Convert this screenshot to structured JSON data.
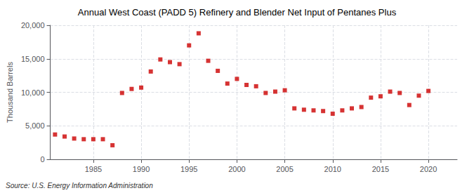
{
  "chart_data": {
    "type": "scatter",
    "title": "Annual West Coast (PADD 5) Refinery and Blender Net Input of Pentanes Plus",
    "ylabel": "Thousand Barrels",
    "source": "Source: U.S. Energy Information Administration",
    "x": [
      1981,
      1982,
      1983,
      1984,
      1985,
      1986,
      1987,
      1988,
      1989,
      1990,
      1991,
      1992,
      1993,
      1994,
      1995,
      1996,
      1997,
      1998,
      1999,
      2000,
      2001,
      2002,
      2003,
      2004,
      2005,
      2006,
      2007,
      2008,
      2009,
      2010,
      2011,
      2012,
      2013,
      2014,
      2015,
      2016,
      2017,
      2018,
      2019,
      2020
    ],
    "values": [
      3700,
      3400,
      3100,
      3000,
      3000,
      3000,
      2100,
      9900,
      10500,
      10700,
      13100,
      14900,
      14500,
      14200,
      17000,
      18800,
      14700,
      13200,
      11300,
      12000,
      11100,
      10900,
      9900,
      10100,
      10300,
      7600,
      7400,
      7300,
      7200,
      6800,
      7300,
      7600,
      7800,
      9200,
      9400,
      10100,
      9900,
      8100,
      9500,
      10200
    ],
    "color": "#cc0000",
    "marker": "square",
    "xlim": [
      1980.5,
      2023
    ],
    "xticks": [
      1985,
      1990,
      1995,
      2000,
      2005,
      2010,
      2015,
      2020
    ],
    "ylim": [
      0,
      20000
    ],
    "yticks": [
      0,
      {
        "value": 5000,
        "label": "5,000"
      },
      {
        "value": 10000,
        "label": "10,000"
      },
      {
        "value": 15000,
        "label": "15,000"
      },
      {
        "value": 20000,
        "label": "20,000"
      }
    ],
    "grid": true
  }
}
